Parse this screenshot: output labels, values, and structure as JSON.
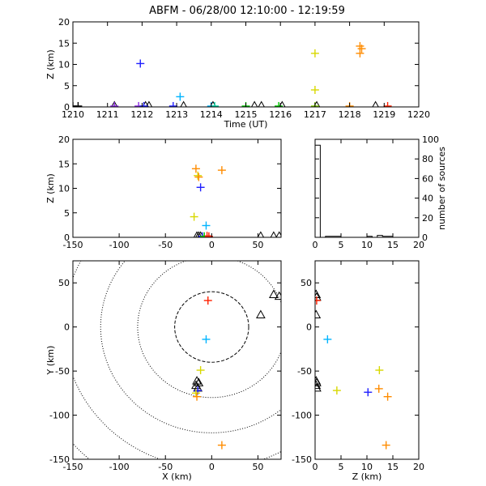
{
  "title": "ABFM - 06/28/00 12:10:00 - 12:19:59",
  "colors": {
    "black": "#000000",
    "purple": "#8a2be2",
    "blue": "#2020ff",
    "cyan": "#00b4ff",
    "teal": "#00d2a0",
    "green": "#00c800",
    "lime": "#7fd000",
    "yellow": "#d8d800",
    "orange": "#ff8c00",
    "red": "#ff2000"
  },
  "chart_data": [
    {
      "id": "time_height",
      "type": "scatter",
      "xlabel": "Time (UT)",
      "ylabel": "Z (km)",
      "xlim": [
        1210,
        1220
      ],
      "ylim": [
        0,
        20
      ],
      "xticks": [
        1210,
        1211,
        1212,
        1213,
        1214,
        1215,
        1216,
        1217,
        1218,
        1219,
        1220
      ],
      "yticks": [
        0,
        5,
        10,
        15,
        20
      ],
      "points": [
        {
          "x": 1210.0,
          "y": 0.2,
          "c": "black"
        },
        {
          "x": 1210.15,
          "y": 0.2,
          "c": "black"
        },
        {
          "x": 1211.2,
          "y": 0.2,
          "c": "purple"
        },
        {
          "x": 1211.9,
          "y": 0.2,
          "c": "purple"
        },
        {
          "x": 1211.95,
          "y": 10.2,
          "c": "blue"
        },
        {
          "x": 1212.05,
          "y": 0.2,
          "c": "blue"
        },
        {
          "x": 1212.9,
          "y": 0.2,
          "c": "blue"
        },
        {
          "x": 1213.1,
          "y": 2.4,
          "c": "cyan"
        },
        {
          "x": 1214.0,
          "y": 0.2,
          "c": "cyan"
        },
        {
          "x": 1214.1,
          "y": 0.2,
          "c": "teal"
        },
        {
          "x": 1215.0,
          "y": 0.2,
          "c": "green"
        },
        {
          "x": 1215.95,
          "y": 0.2,
          "c": "green"
        },
        {
          "x": 1217.0,
          "y": 12.6,
          "c": "yellow"
        },
        {
          "x": 1217.0,
          "y": 4.0,
          "c": "yellow"
        },
        {
          "x": 1217.0,
          "y": 0.2,
          "c": "lime"
        },
        {
          "x": 1218.0,
          "y": 0.2,
          "c": "orange"
        },
        {
          "x": 1218.3,
          "y": 14.3,
          "c": "orange"
        },
        {
          "x": 1218.35,
          "y": 13.7,
          "c": "orange"
        },
        {
          "x": 1218.3,
          "y": 12.6,
          "c": "orange"
        },
        {
          "x": 1219.1,
          "y": 0.2,
          "c": "red"
        }
      ],
      "triangles": [
        {
          "x": 1211.2,
          "y": 0.1
        },
        {
          "x": 1212.1,
          "y": 0.1
        },
        {
          "x": 1212.2,
          "y": 0.1
        },
        {
          "x": 1213.2,
          "y": 0.1
        },
        {
          "x": 1214.05,
          "y": 0.1
        },
        {
          "x": 1215.25,
          "y": 0.1
        },
        {
          "x": 1215.45,
          "y": 0.1
        },
        {
          "x": 1216.05,
          "y": 0.1
        },
        {
          "x": 1217.05,
          "y": 0.1
        },
        {
          "x": 1218.75,
          "y": 0.1
        }
      ]
    },
    {
      "id": "x_height",
      "type": "scatter",
      "xlabel": "",
      "ylabel": "Z (km)",
      "xlim": [
        -150,
        75
      ],
      "ylim": [
        0,
        20
      ],
      "xticks": [
        -150,
        -100,
        -50,
        0,
        50
      ],
      "yticks": [
        0,
        5,
        10,
        15,
        20
      ],
      "points": [
        {
          "x": -17,
          "y": 14.0,
          "c": "orange"
        },
        {
          "x": 11,
          "y": 13.7,
          "c": "orange"
        },
        {
          "x": -15,
          "y": 12.6,
          "c": "yellow"
        },
        {
          "x": -14,
          "y": 12.3,
          "c": "orange"
        },
        {
          "x": -12,
          "y": 10.2,
          "c": "blue"
        },
        {
          "x": -19,
          "y": 4.2,
          "c": "yellow"
        },
        {
          "x": -6,
          "y": 2.4,
          "c": "cyan"
        },
        {
          "x": -5,
          "y": 0.3,
          "c": "red"
        },
        {
          "x": -10,
          "y": 0.2,
          "c": "blue"
        },
        {
          "x": -8,
          "y": 0.2,
          "c": "green"
        },
        {
          "x": -3,
          "y": 0.2,
          "c": "red"
        }
      ],
      "triangles": [
        {
          "x": -16,
          "y": 0.1
        },
        {
          "x": -14,
          "y": 0.1
        },
        {
          "x": -12,
          "y": 0.1
        },
        {
          "x": 53,
          "y": 0.1
        },
        {
          "x": 67,
          "y": 0.1
        },
        {
          "x": 73,
          "y": 0.1
        }
      ]
    },
    {
      "id": "height_histogram",
      "type": "bar",
      "ylabel": "number of sources",
      "xlim": [
        0,
        20
      ],
      "ylim": [
        0,
        100
      ],
      "xticks": [
        0,
        5,
        10,
        15,
        20
      ],
      "yticks": [
        0,
        20,
        40,
        60,
        80,
        100
      ],
      "bins": [
        {
          "x0": 0,
          "x1": 1,
          "value": 94
        },
        {
          "x0": 1,
          "x1": 2,
          "value": 0
        },
        {
          "x0": 2,
          "x1": 3,
          "value": 1
        },
        {
          "x0": 3,
          "x1": 4,
          "value": 1
        },
        {
          "x0": 4,
          "x1": 5,
          "value": 1
        },
        {
          "x0": 5,
          "x1": 6,
          "value": 0
        },
        {
          "x0": 6,
          "x1": 7,
          "value": 0
        },
        {
          "x0": 7,
          "x1": 8,
          "value": 0
        },
        {
          "x0": 8,
          "x1": 9,
          "value": 0
        },
        {
          "x0": 9,
          "x1": 10,
          "value": 0
        },
        {
          "x0": 10,
          "x1": 11,
          "value": 1
        },
        {
          "x0": 11,
          "x1": 12,
          "value": 0
        },
        {
          "x0": 12,
          "x1": 13,
          "value": 2
        },
        {
          "x0": 13,
          "x1": 14,
          "value": 1
        },
        {
          "x0": 14,
          "x1": 15,
          "value": 1
        },
        {
          "x0": 15,
          "x1": 16,
          "value": 0
        },
        {
          "x0": 16,
          "x1": 17,
          "value": 0
        },
        {
          "x0": 17,
          "x1": 18,
          "value": 0
        },
        {
          "x0": 18,
          "x1": 19,
          "value": 0
        },
        {
          "x0": 19,
          "x1": 20,
          "value": 0
        }
      ]
    },
    {
      "id": "plan_view",
      "type": "scatter",
      "xlabel": "X (km)",
      "ylabel": "Y (km)",
      "xlim": [
        -150,
        75
      ],
      "ylim": [
        -150,
        75
      ],
      "xticks": [
        -150,
        -100,
        -50,
        0,
        50
      ],
      "yticks": [
        -150,
        -100,
        -50,
        0,
        50
      ],
      "range_rings_km": [
        40,
        80,
        120,
        160,
        200
      ],
      "points": [
        {
          "x": -4,
          "y": 30,
          "c": "red"
        },
        {
          "x": -6,
          "y": -14,
          "c": "cyan"
        },
        {
          "x": -12,
          "y": -49,
          "c": "yellow"
        },
        {
          "x": -15,
          "y": -72,
          "c": "blue"
        },
        {
          "x": -17,
          "y": -75,
          "c": "yellow"
        },
        {
          "x": -16,
          "y": -79,
          "c": "orange"
        },
        {
          "x": 11,
          "y": -134,
          "c": "orange"
        }
      ],
      "triangles": [
        {
          "x": -16,
          "y": -62
        },
        {
          "x": -14,
          "y": -64
        },
        {
          "x": -17,
          "y": -67
        },
        {
          "x": -15,
          "y": -70
        },
        {
          "x": 53,
          "y": 13
        },
        {
          "x": 67,
          "y": 36
        },
        {
          "x": 73,
          "y": 34
        }
      ]
    },
    {
      "id": "height_y",
      "type": "scatter",
      "xlabel": "Z (km)",
      "ylabel": "",
      "xlim": [
        0,
        20
      ],
      "ylim": [
        -150,
        75
      ],
      "xticks": [
        0,
        5,
        10,
        15,
        20
      ],
      "yticks": [
        -150,
        -100,
        -50,
        0,
        50
      ],
      "points": [
        {
          "x": 0.3,
          "y": 30,
          "c": "red"
        },
        {
          "x": 2.4,
          "y": -14,
          "c": "cyan"
        },
        {
          "x": 12.4,
          "y": -49,
          "c": "yellow"
        },
        {
          "x": 4.2,
          "y": -72,
          "c": "yellow"
        },
        {
          "x": 10.2,
          "y": -74,
          "c": "blue"
        },
        {
          "x": 12.3,
          "y": -70,
          "c": "orange"
        },
        {
          "x": 14.0,
          "y": -79,
          "c": "orange"
        },
        {
          "x": 13.7,
          "y": -134,
          "c": "orange"
        }
      ],
      "triangles": [
        {
          "x": 0.2,
          "y": 36
        },
        {
          "x": 0.3,
          "y": 33
        },
        {
          "x": 0.2,
          "y": 13
        },
        {
          "x": 0.2,
          "y": -62
        },
        {
          "x": 0.3,
          "y": -64
        },
        {
          "x": 0.2,
          "y": -67
        },
        {
          "x": 0.3,
          "y": -70
        }
      ]
    }
  ]
}
